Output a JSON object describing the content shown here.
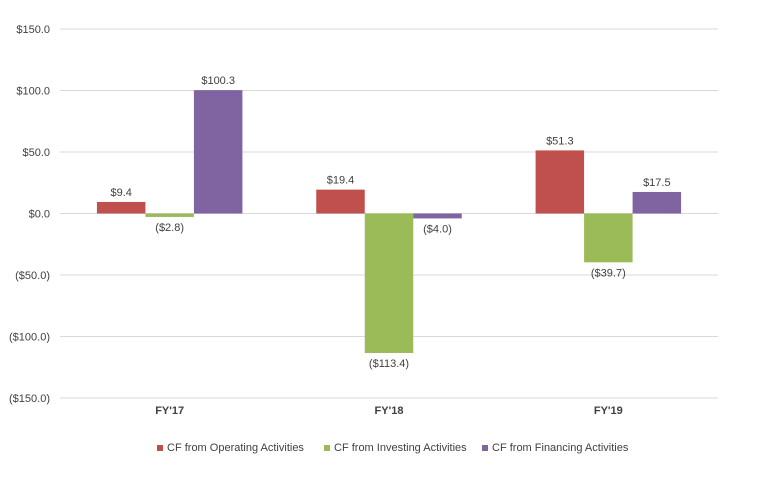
{
  "chart_data": {
    "type": "bar",
    "categories": [
      "FY'17",
      "FY'18",
      "FY'19"
    ],
    "series": [
      {
        "name": "CF from Operating Activities",
        "values": [
          9.4,
          19.4,
          51.3
        ],
        "labels": [
          "$9.4",
          "$19.4",
          "$51.3"
        ],
        "color": "#c0504d"
      },
      {
        "name": "CF from Investing Activities",
        "values": [
          -2.8,
          -113.4,
          -39.7
        ],
        "labels": [
          "($2.8)",
          "($113.4)",
          "($39.7)"
        ],
        "color": "#9bbb59"
      },
      {
        "name": "CF from Financing Activities",
        "values": [
          100.3,
          -4.0,
          17.5
        ],
        "labels": [
          "$100.3",
          "($4.0)",
          "$17.5"
        ],
        "color": "#8064a2"
      }
    ],
    "ylim": [
      -150,
      150
    ],
    "yticks": [
      150,
      100,
      50,
      0,
      -50,
      -100,
      -150
    ],
    "ytick_labels": [
      "$150.0",
      "$100.0",
      "$50.0",
      "$0.0",
      "($50.0)",
      "($100.0)",
      "($150.0)"
    ],
    "grid": true,
    "legend_position": "bottom"
  }
}
